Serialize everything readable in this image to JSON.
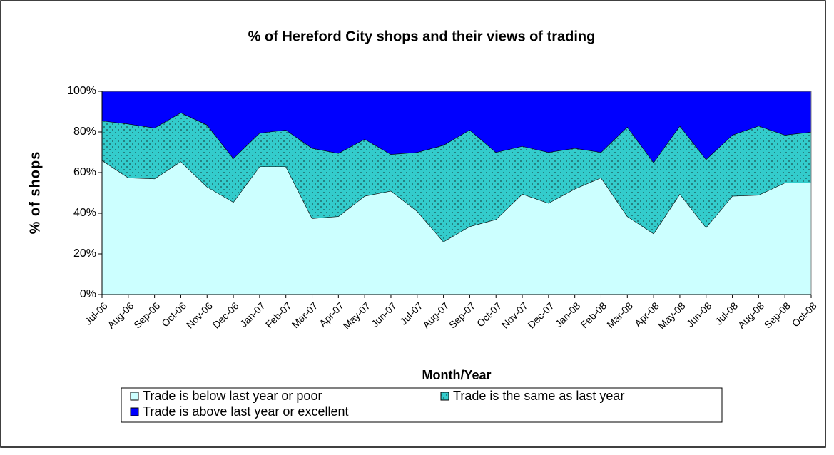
{
  "chart_data": {
    "type": "stacked_area_100",
    "title": "% of Hereford City shops and their views of trading",
    "x_label": "Month/Year",
    "y_label": "% of shops",
    "categories": [
      "Jul-06",
      "Aug-06",
      "Sep-06",
      "Oct-06",
      "Nov-06",
      "Dec-06",
      "Jan-07",
      "Feb-07",
      "Mar-07",
      "Apr-07",
      "May-07",
      "Jun-07",
      "Jul-07",
      "Aug-07",
      "Sep-07",
      "Oct-07",
      "Nov-07",
      "Dec-07",
      "Jan-08",
      "Feb-08",
      "Mar-08",
      "Apr-08",
      "May-08",
      "Jun-08",
      "Jul-08",
      "Aug-08",
      "Sep-08",
      "Oct-08"
    ],
    "series": [
      {
        "name": "Trade is below last year or poor",
        "color": "#ccffff",
        "values": [
          66,
          57.5,
          57,
          65.5,
          53,
          45.5,
          63,
          63,
          37.5,
          38.5,
          48.5,
          51,
          41,
          26,
          33.5,
          37,
          49.5,
          45,
          52,
          57.5,
          38.5,
          30,
          49.5,
          33,
          48.5,
          49,
          55,
          55
        ]
      },
      {
        "name": "Trade is the same as last year",
        "color": "#33cccc",
        "values": [
          19.5,
          26.5,
          25,
          24,
          30.5,
          21.5,
          16.5,
          18,
          34.5,
          31,
          28,
          18,
          29,
          47.5,
          47.5,
          33,
          23.5,
          25,
          20,
          12.5,
          44,
          35,
          33.5,
          33.5,
          30,
          34,
          23.5,
          25
        ]
      },
      {
        "name": "Trade is above last year or excellent",
        "color": "#0000ff",
        "values": [
          14.5,
          16,
          18,
          10.5,
          16.5,
          33,
          20.5,
          19,
          28,
          30.5,
          23.5,
          31,
          30,
          26.5,
          19,
          30,
          27,
          30,
          28,
          30,
          17.5,
          35,
          17,
          33.5,
          21.5,
          17,
          21.5,
          20
        ]
      }
    ],
    "ylim": [
      0,
      100
    ],
    "yticks": [
      {
        "value": 0,
        "label": "0%"
      },
      {
        "value": 20,
        "label": "20%"
      },
      {
        "value": 40,
        "label": "40%"
      },
      {
        "value": 60,
        "label": "60%"
      },
      {
        "value": 80,
        "label": "80%"
      },
      {
        "value": 100,
        "label": "100%"
      }
    ]
  }
}
